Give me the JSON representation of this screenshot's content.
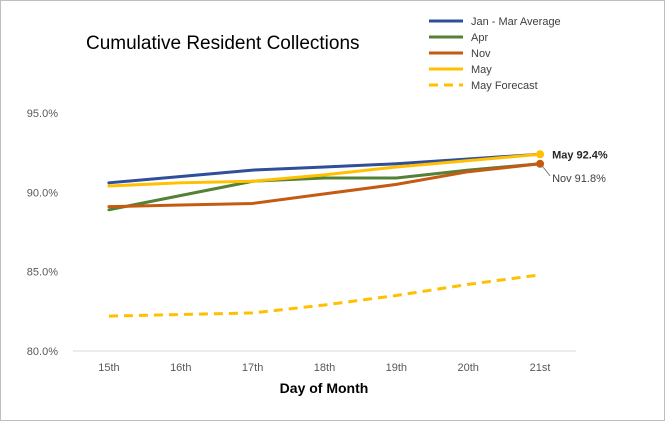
{
  "chart_data": {
    "type": "line",
    "title": "Cumulative Resident Collections",
    "xlabel": "Day of Month",
    "ylabel": "",
    "categories": [
      "15th",
      "16th",
      "17th",
      "18th",
      "19th",
      "20th",
      "21st"
    ],
    "ylim": [
      80,
      95
    ],
    "yticks": [
      "80.0%",
      "85.0%",
      "90.0%",
      "95.0%"
    ],
    "grid": false,
    "legend_position": "top-right",
    "series": [
      {
        "name": "Jan - Mar Average",
        "color": "#2f4f9a",
        "dashed": false,
        "values": [
          90.6,
          91.0,
          91.4,
          91.6,
          91.8,
          92.1,
          92.4
        ]
      },
      {
        "name": "Apr",
        "color": "#538135",
        "dashed": false,
        "values": [
          88.9,
          89.8,
          90.7,
          90.9,
          90.9,
          91.4,
          91.8
        ]
      },
      {
        "name": "Nov",
        "color": "#c55a11",
        "dashed": false,
        "values": [
          89.1,
          89.2,
          89.3,
          89.9,
          90.5,
          91.3,
          91.8
        ]
      },
      {
        "name": "May",
        "color": "#ffc000",
        "dashed": false,
        "values": [
          90.4,
          90.6,
          90.7,
          91.1,
          91.6,
          92.0,
          92.4
        ]
      },
      {
        "name": "May Forecast",
        "color": "#ffc000",
        "dashed": true,
        "values": [
          82.2,
          82.3,
          82.4,
          82.9,
          83.5,
          84.2,
          84.8
        ]
      }
    ],
    "annotations": [
      {
        "text": "May 92.4%",
        "series": "May",
        "category": "21st",
        "bold": true
      },
      {
        "text": "Nov 91.8%",
        "series": "Nov",
        "category": "21st",
        "bold": false
      }
    ]
  }
}
